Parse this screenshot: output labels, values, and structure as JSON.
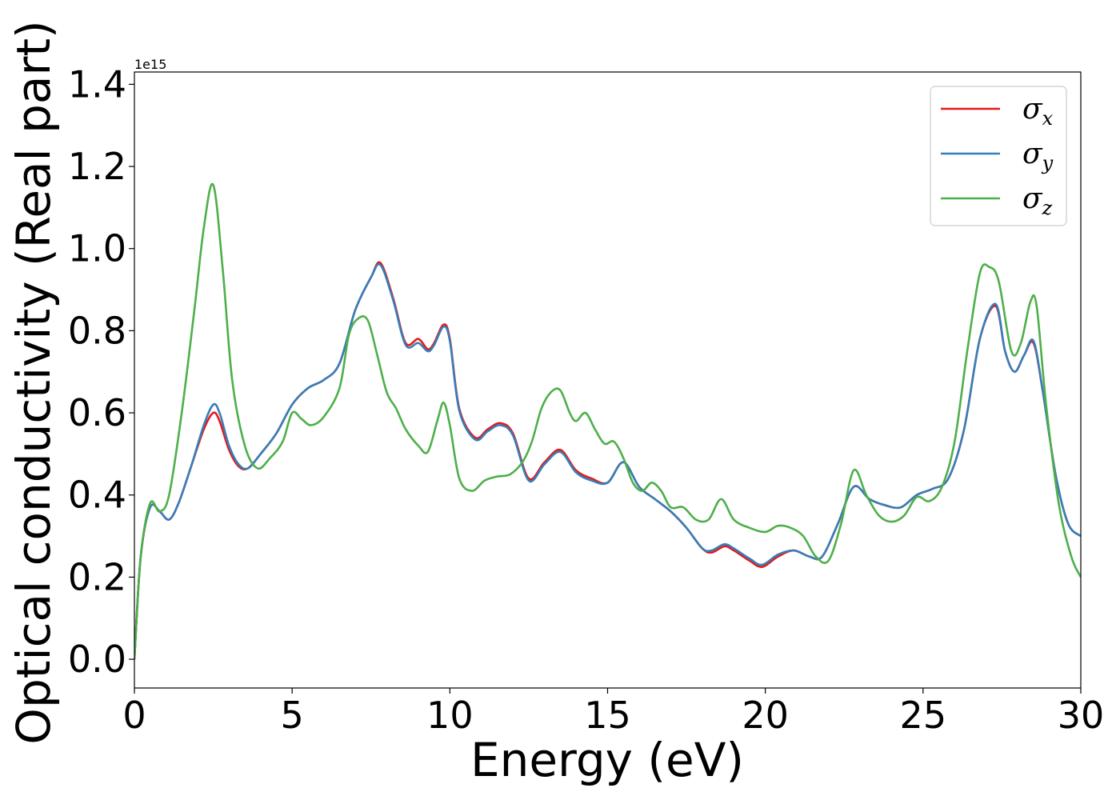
{
  "chart_data": {
    "type": "line",
    "title": "",
    "xlabel": "Energy (eV)",
    "ylabel": "Optical conductivity (Real part)",
    "y_offset_label": "1e15",
    "xlim": [
      0,
      30
    ],
    "ylim": [
      -0.07,
      1.43
    ],
    "xticks": [
      0,
      5,
      10,
      15,
      20,
      25,
      30
    ],
    "yticks": [
      0.0,
      0.2,
      0.4,
      0.6,
      0.8,
      1.0,
      1.2,
      1.4
    ],
    "xtick_labels": [
      "0",
      "5",
      "10",
      "15",
      "20",
      "25",
      "30"
    ],
    "ytick_labels": [
      "0.0",
      "0.2",
      "0.4",
      "0.6",
      "0.8",
      "1.0",
      "1.2",
      "1.4"
    ],
    "grid": false,
    "legend_position": "top-right",
    "series": [
      {
        "name": "σx",
        "symbol": "σ",
        "subscript": "x",
        "color": "#e41a1c",
        "points": [
          [
            0,
            0.0
          ],
          [
            0.2,
            0.25
          ],
          [
            0.5,
            0.37
          ],
          [
            0.8,
            0.36
          ],
          [
            1.1,
            0.34
          ],
          [
            1.4,
            0.38
          ],
          [
            1.8,
            0.47
          ],
          [
            2.2,
            0.56
          ],
          [
            2.5,
            0.6
          ],
          [
            2.7,
            0.58
          ],
          [
            3.0,
            0.51
          ],
          [
            3.3,
            0.47
          ],
          [
            3.6,
            0.465
          ],
          [
            4.0,
            0.5
          ],
          [
            4.5,
            0.55
          ],
          [
            5.0,
            0.62
          ],
          [
            5.5,
            0.66
          ],
          [
            6.0,
            0.68
          ],
          [
            6.5,
            0.72
          ],
          [
            7.0,
            0.85
          ],
          [
            7.5,
            0.93
          ],
          [
            7.8,
            0.965
          ],
          [
            8.2,
            0.88
          ],
          [
            8.6,
            0.77
          ],
          [
            9.0,
            0.78
          ],
          [
            9.3,
            0.755
          ],
          [
            9.5,
            0.77
          ],
          [
            9.8,
            0.815
          ],
          [
            10.0,
            0.78
          ],
          [
            10.3,
            0.61
          ],
          [
            10.8,
            0.54
          ],
          [
            11.2,
            0.56
          ],
          [
            11.6,
            0.575
          ],
          [
            12.0,
            0.55
          ],
          [
            12.5,
            0.44
          ],
          [
            13.0,
            0.48
          ],
          [
            13.5,
            0.51
          ],
          [
            14.0,
            0.46
          ],
          [
            14.5,
            0.44
          ],
          [
            15.0,
            0.43
          ],
          [
            15.5,
            0.48
          ],
          [
            16.0,
            0.42
          ],
          [
            16.5,
            0.39
          ],
          [
            17.0,
            0.36
          ],
          [
            17.5,
            0.32
          ],
          [
            18.0,
            0.27
          ],
          [
            18.3,
            0.26
          ],
          [
            18.7,
            0.275
          ],
          [
            19.0,
            0.265
          ],
          [
            19.5,
            0.24
          ],
          [
            19.9,
            0.225
          ],
          [
            20.4,
            0.25
          ],
          [
            20.9,
            0.265
          ],
          [
            21.4,
            0.25
          ],
          [
            21.8,
            0.25
          ],
          [
            22.3,
            0.33
          ],
          [
            22.8,
            0.42
          ],
          [
            23.3,
            0.39
          ],
          [
            23.8,
            0.375
          ],
          [
            24.3,
            0.37
          ],
          [
            24.8,
            0.4
          ],
          [
            25.3,
            0.415
          ],
          [
            25.8,
            0.44
          ],
          [
            26.3,
            0.56
          ],
          [
            26.8,
            0.78
          ],
          [
            27.3,
            0.86
          ],
          [
            27.6,
            0.75
          ],
          [
            27.9,
            0.7
          ],
          [
            28.2,
            0.74
          ],
          [
            28.5,
            0.77
          ],
          [
            28.8,
            0.65
          ],
          [
            29.2,
            0.45
          ],
          [
            29.6,
            0.33
          ],
          [
            30.0,
            0.3
          ]
        ]
      },
      {
        "name": "σy",
        "symbol": "σ",
        "subscript": "y",
        "color": "#377eb8",
        "points": [
          [
            0,
            0.0
          ],
          [
            0.2,
            0.25
          ],
          [
            0.5,
            0.37
          ],
          [
            0.8,
            0.36
          ],
          [
            1.1,
            0.34
          ],
          [
            1.4,
            0.38
          ],
          [
            1.8,
            0.47
          ],
          [
            2.2,
            0.57
          ],
          [
            2.5,
            0.62
          ],
          [
            2.7,
            0.6
          ],
          [
            3.0,
            0.52
          ],
          [
            3.3,
            0.475
          ],
          [
            3.6,
            0.465
          ],
          [
            4.0,
            0.5
          ],
          [
            4.5,
            0.55
          ],
          [
            5.0,
            0.62
          ],
          [
            5.5,
            0.66
          ],
          [
            6.0,
            0.68
          ],
          [
            6.5,
            0.72
          ],
          [
            7.0,
            0.85
          ],
          [
            7.5,
            0.93
          ],
          [
            7.8,
            0.96
          ],
          [
            8.2,
            0.875
          ],
          [
            8.6,
            0.765
          ],
          [
            9.0,
            0.77
          ],
          [
            9.3,
            0.75
          ],
          [
            9.5,
            0.765
          ],
          [
            9.8,
            0.81
          ],
          [
            10.0,
            0.775
          ],
          [
            10.3,
            0.605
          ],
          [
            10.8,
            0.535
          ],
          [
            11.2,
            0.555
          ],
          [
            11.6,
            0.57
          ],
          [
            12.0,
            0.545
          ],
          [
            12.5,
            0.435
          ],
          [
            13.0,
            0.475
          ],
          [
            13.5,
            0.505
          ],
          [
            14.0,
            0.455
          ],
          [
            14.5,
            0.435
          ],
          [
            15.0,
            0.43
          ],
          [
            15.5,
            0.48
          ],
          [
            16.0,
            0.42
          ],
          [
            16.5,
            0.39
          ],
          [
            17.0,
            0.36
          ],
          [
            17.5,
            0.32
          ],
          [
            18.0,
            0.27
          ],
          [
            18.3,
            0.265
          ],
          [
            18.7,
            0.28
          ],
          [
            19.0,
            0.27
          ],
          [
            19.5,
            0.245
          ],
          [
            19.9,
            0.23
          ],
          [
            20.4,
            0.255
          ],
          [
            20.9,
            0.265
          ],
          [
            21.4,
            0.25
          ],
          [
            21.8,
            0.25
          ],
          [
            22.3,
            0.33
          ],
          [
            22.8,
            0.42
          ],
          [
            23.3,
            0.39
          ],
          [
            23.8,
            0.375
          ],
          [
            24.3,
            0.37
          ],
          [
            24.8,
            0.4
          ],
          [
            25.3,
            0.415
          ],
          [
            25.8,
            0.44
          ],
          [
            26.3,
            0.56
          ],
          [
            26.8,
            0.78
          ],
          [
            27.3,
            0.865
          ],
          [
            27.6,
            0.75
          ],
          [
            27.9,
            0.7
          ],
          [
            28.2,
            0.74
          ],
          [
            28.5,
            0.775
          ],
          [
            28.8,
            0.65
          ],
          [
            29.2,
            0.45
          ],
          [
            29.6,
            0.33
          ],
          [
            30.0,
            0.3
          ]
        ]
      },
      {
        "name": "σz",
        "symbol": "σ",
        "subscript": "z",
        "color": "#4daf4a",
        "points": [
          [
            0,
            0.0
          ],
          [
            0.2,
            0.25
          ],
          [
            0.5,
            0.38
          ],
          [
            0.8,
            0.36
          ],
          [
            1.1,
            0.4
          ],
          [
            1.5,
            0.6
          ],
          [
            1.9,
            0.85
          ],
          [
            2.2,
            1.05
          ],
          [
            2.5,
            1.155
          ],
          [
            2.8,
            0.95
          ],
          [
            3.1,
            0.68
          ],
          [
            3.5,
            0.52
          ],
          [
            3.9,
            0.465
          ],
          [
            4.3,
            0.49
          ],
          [
            4.7,
            0.53
          ],
          [
            5.0,
            0.6
          ],
          [
            5.3,
            0.585
          ],
          [
            5.6,
            0.57
          ],
          [
            6.0,
            0.59
          ],
          [
            6.5,
            0.66
          ],
          [
            6.8,
            0.79
          ],
          [
            7.1,
            0.83
          ],
          [
            7.4,
            0.825
          ],
          [
            7.7,
            0.74
          ],
          [
            8.0,
            0.65
          ],
          [
            8.3,
            0.61
          ],
          [
            8.6,
            0.56
          ],
          [
            9.0,
            0.52
          ],
          [
            9.3,
            0.505
          ],
          [
            9.6,
            0.58
          ],
          [
            9.8,
            0.625
          ],
          [
            10.0,
            0.57
          ],
          [
            10.3,
            0.44
          ],
          [
            10.7,
            0.41
          ],
          [
            11.1,
            0.435
          ],
          [
            11.5,
            0.445
          ],
          [
            11.9,
            0.45
          ],
          [
            12.3,
            0.48
          ],
          [
            12.6,
            0.53
          ],
          [
            12.9,
            0.61
          ],
          [
            13.2,
            0.65
          ],
          [
            13.5,
            0.655
          ],
          [
            13.8,
            0.6
          ],
          [
            14.0,
            0.58
          ],
          [
            14.3,
            0.6
          ],
          [
            14.6,
            0.56
          ],
          [
            14.9,
            0.525
          ],
          [
            15.2,
            0.53
          ],
          [
            15.5,
            0.49
          ],
          [
            15.8,
            0.43
          ],
          [
            16.1,
            0.41
          ],
          [
            16.4,
            0.43
          ],
          [
            16.7,
            0.41
          ],
          [
            17.0,
            0.37
          ],
          [
            17.4,
            0.37
          ],
          [
            17.8,
            0.34
          ],
          [
            18.2,
            0.34
          ],
          [
            18.6,
            0.39
          ],
          [
            19.0,
            0.34
          ],
          [
            19.5,
            0.32
          ],
          [
            20.0,
            0.31
          ],
          [
            20.4,
            0.325
          ],
          [
            20.8,
            0.32
          ],
          [
            21.2,
            0.3
          ],
          [
            21.6,
            0.25
          ],
          [
            22.0,
            0.24
          ],
          [
            22.4,
            0.33
          ],
          [
            22.8,
            0.46
          ],
          [
            23.2,
            0.4
          ],
          [
            23.6,
            0.35
          ],
          [
            24.0,
            0.335
          ],
          [
            24.4,
            0.35
          ],
          [
            24.8,
            0.395
          ],
          [
            25.2,
            0.385
          ],
          [
            25.6,
            0.42
          ],
          [
            26.0,
            0.53
          ],
          [
            26.4,
            0.75
          ],
          [
            26.8,
            0.94
          ],
          [
            27.1,
            0.955
          ],
          [
            27.4,
            0.92
          ],
          [
            27.8,
            0.75
          ],
          [
            28.1,
            0.77
          ],
          [
            28.4,
            0.87
          ],
          [
            28.6,
            0.86
          ],
          [
            28.9,
            0.62
          ],
          [
            29.3,
            0.38
          ],
          [
            29.7,
            0.25
          ],
          [
            30.0,
            0.2
          ]
        ]
      }
    ]
  }
}
